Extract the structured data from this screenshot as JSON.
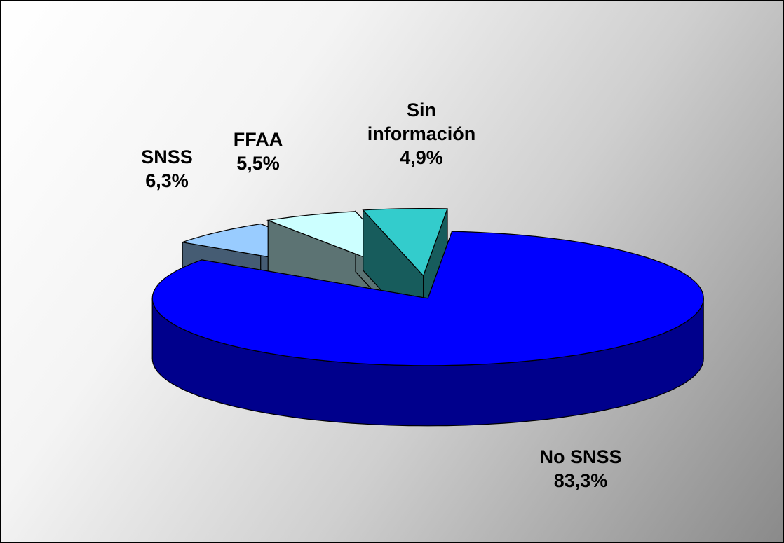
{
  "chart_data": {
    "type": "pie",
    "categories": [
      "No SNSS",
      "SNSS",
      "FFAA",
      "Sin información"
    ],
    "values": [
      83.3,
      6.3,
      5.5,
      4.9
    ],
    "value_labels": [
      "83,3%",
      "6,3%",
      "5,5%",
      "4,9%"
    ],
    "colors": [
      "#0000ff",
      "#99ccff",
      "#ccffff",
      "#33cccc"
    ],
    "three_d": true
  }
}
